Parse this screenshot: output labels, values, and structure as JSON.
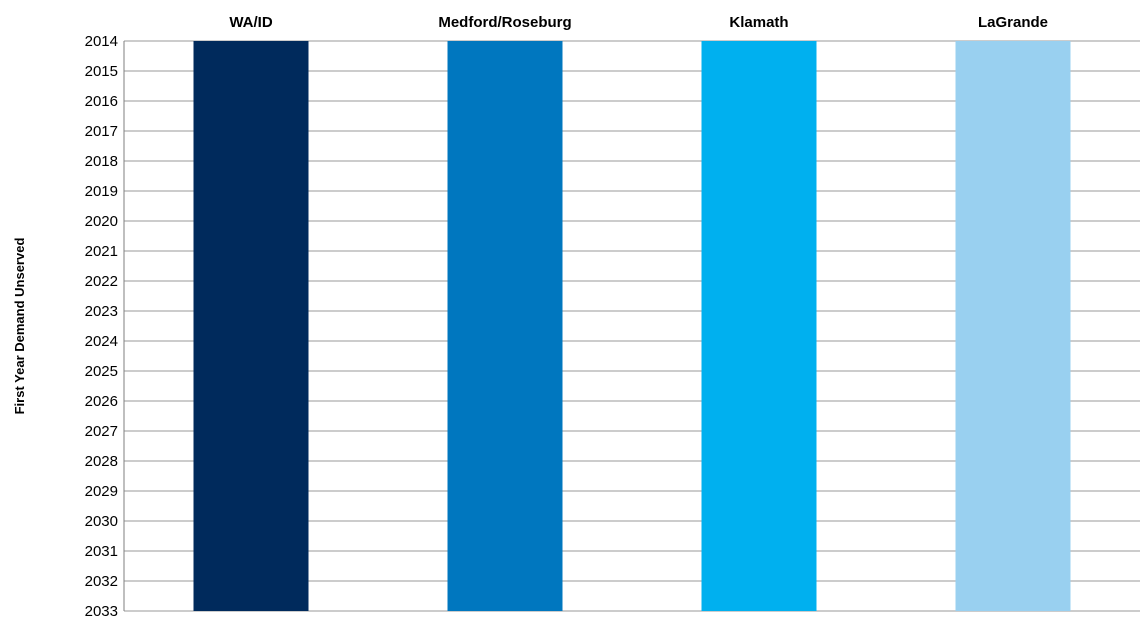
{
  "chart_data": {
    "type": "bar",
    "orientation": "vertical",
    "y_axis": "year",
    "ylabel": "First Year Demand Unserved",
    "yticks": [
      "2014",
      "2015",
      "2016",
      "2017",
      "2018",
      "2019",
      "2020",
      "2021",
      "2022",
      "2023",
      "2024",
      "2025",
      "2026",
      "2027",
      "2028",
      "2029",
      "2030",
      "2031",
      "2032",
      "2033"
    ],
    "ylim": [
      2014,
      2033
    ],
    "y_inverted": true,
    "grid": true,
    "legend": "none",
    "categories": [
      "WA/ID",
      "Medford/Roseburg",
      "Klamath",
      "LaGrande"
    ],
    "values": [
      2033,
      2033,
      2033,
      2033
    ],
    "colors": [
      "#002A5C",
      "#0077BF",
      "#00B0EF",
      "#99D0F0"
    ]
  }
}
